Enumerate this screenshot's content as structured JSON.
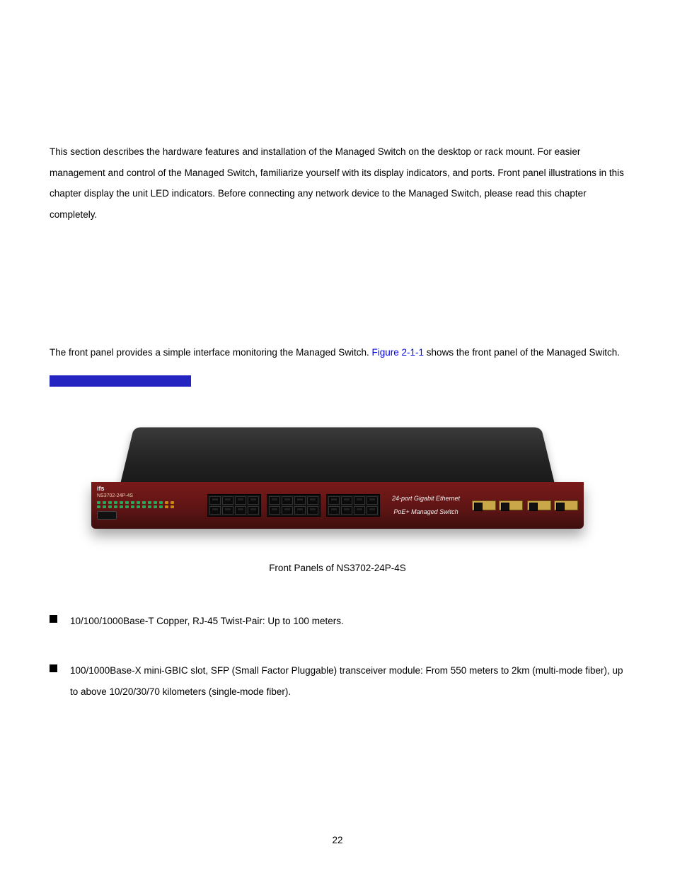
{
  "intro_paragraph": "This section describes the hardware features and installation of the Managed Switch on the desktop or rack mount. For easier management and control of the Managed Switch, familiarize yourself with its display indicators, and ports. Front panel illustrations in this chapter display the unit LED indicators. Before connecting any network device to the Managed Switch, please read this chapter completely.",
  "front_panel": {
    "text_before_link": "The front panel provides a simple interface monitoring the Managed Switch. ",
    "link_text": "Figure 2-1-1",
    "text_after_link": " shows the front panel of the Managed Switch.",
    "link_color": "#0000ee"
  },
  "blue_bar_color": "#2424c0",
  "figure": {
    "caption": "Front Panels of NS3702-24P-4S",
    "logo_text": "ifs",
    "model_text": "NS3702-24P-4S",
    "face_label": "24-port Gigabit Ethernet PoE+ Managed Switch",
    "chassis_color": "#202020",
    "face_color_top": "#7a1a1a",
    "face_color_bottom": "#3e0e0e",
    "sfp_color": "#caa84a",
    "port_color": "#0a0a0a"
  },
  "bullets": [
    {
      "heading": "",
      "body": "10/100/1000Base-T Copper, RJ-45 Twist-Pair: Up to 100 meters."
    },
    {
      "heading": "",
      "body": "100/1000Base-X mini-GBIC slot, SFP (Small Factor Pluggable) transceiver module: From 550 meters to 2km (multi-mode fiber), up to above 10/20/30/70 kilometers (single-mode fiber)."
    }
  ],
  "page_number": "22"
}
